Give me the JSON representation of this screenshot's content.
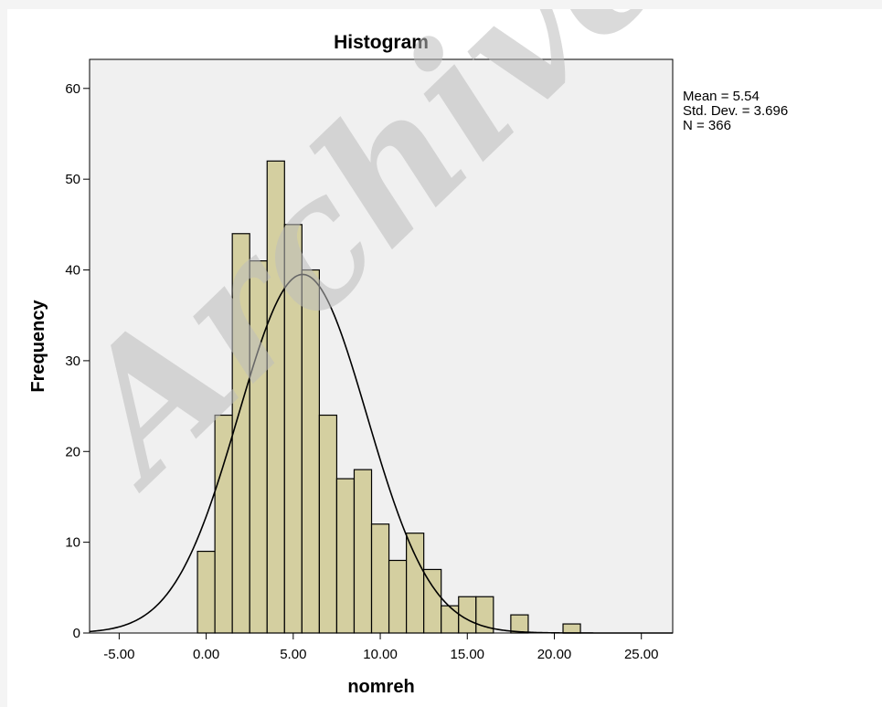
{
  "chart_data": {
    "type": "bar",
    "subtype": "histogram",
    "title": "Histogram",
    "xlabel": "nomreh",
    "ylabel": "Frequency",
    "xlim": [
      -6.7,
      26.8
    ],
    "ylim": [
      0,
      63.2
    ],
    "x_ticks": [
      -5,
      0,
      5,
      10,
      15,
      20,
      25
    ],
    "x_tick_labels": [
      "-5.00",
      "0.00",
      "5.00",
      "10.00",
      "15.00",
      "20.00",
      "25.00"
    ],
    "y_ticks": [
      0,
      10,
      20,
      30,
      40,
      50,
      60
    ],
    "y_tick_labels": [
      "0",
      "10",
      "20",
      "30",
      "40",
      "50",
      "60"
    ],
    "bin_width": 1,
    "bin_centers": [
      0,
      1,
      2,
      3,
      4,
      5,
      6,
      7,
      8,
      9,
      10,
      11,
      12,
      13,
      14,
      15,
      16,
      17,
      18,
      19,
      20,
      21
    ],
    "values": [
      9,
      24,
      44,
      41,
      52,
      45,
      40,
      24,
      17,
      18,
      12,
      8,
      11,
      7,
      3,
      4,
      4,
      0,
      2,
      0,
      0,
      1
    ],
    "normal_curve": {
      "mean": 5.54,
      "std_dev": 3.696,
      "n": 366
    },
    "stats_lines": [
      "Mean = 5.54",
      "Std. Dev. = 3.696",
      "N = 366"
    ],
    "grid": false,
    "watermark": "Archive of"
  },
  "colors": {
    "bar_fill": "#d4cfa0",
    "bar_stroke": "#000000",
    "plot_background": "#f0f0f0",
    "curve": "#000000",
    "watermark": "#bdbdbd"
  }
}
